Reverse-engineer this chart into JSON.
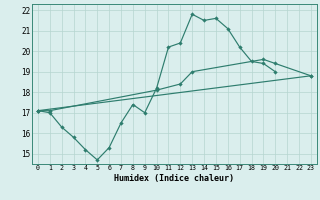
{
  "line1_x": [
    0,
    1,
    2,
    3,
    4,
    5,
    6,
    7,
    8,
    9,
    10,
    11,
    12,
    13,
    14,
    15,
    16,
    17,
    18,
    19,
    20
  ],
  "line1_y": [
    17.1,
    17.0,
    16.3,
    15.8,
    15.2,
    14.7,
    15.3,
    16.5,
    17.4,
    17.0,
    18.2,
    20.2,
    20.4,
    21.8,
    21.5,
    21.6,
    21.1,
    20.2,
    19.5,
    19.4,
    19.0
  ],
  "line2_x": [
    0,
    1,
    10,
    12,
    13,
    19,
    20,
    23
  ],
  "line2_y": [
    17.1,
    17.1,
    18.1,
    18.4,
    19.0,
    19.6,
    19.4,
    18.8
  ],
  "line3_x": [
    0,
    23
  ],
  "line3_y": [
    17.1,
    18.8
  ],
  "line_color": "#2e7d6e",
  "bg_color": "#daeeed",
  "grid_color": "#b5d5d0",
  "xlabel": "Humidex (Indice chaleur)",
  "xlim": [
    -0.5,
    23.5
  ],
  "ylim": [
    14.5,
    22.3
  ],
  "xticks": [
    0,
    1,
    2,
    3,
    4,
    5,
    6,
    7,
    8,
    9,
    10,
    11,
    12,
    13,
    14,
    15,
    16,
    17,
    18,
    19,
    20,
    21,
    22,
    23
  ],
  "yticks": [
    15,
    16,
    17,
    18,
    19,
    20,
    21,
    22
  ]
}
